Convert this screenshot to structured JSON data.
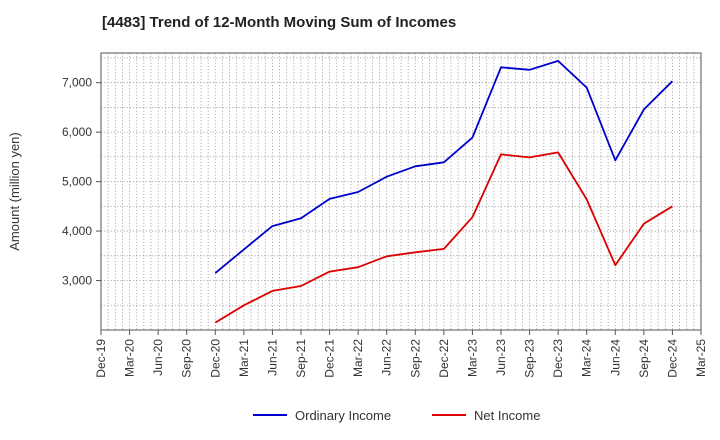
{
  "chart_data": {
    "type": "line",
    "title": "[4483]  Trend of 12-Month Moving Sum of Incomes",
    "xlabel": "",
    "ylabel": "Amount (million yen)",
    "ylim": [
      2000,
      7600
    ],
    "yticks": [
      3000,
      4000,
      5000,
      6000,
      7000
    ],
    "ytick_labels": [
      "3,000",
      "4,000",
      "5,000",
      "6,000",
      "7,000"
    ],
    "categories": [
      "Dec-19",
      "Mar-20",
      "Jun-20",
      "Sep-20",
      "Dec-20",
      "Mar-21",
      "Jun-21",
      "Sep-21",
      "Dec-21",
      "Mar-22",
      "Jun-22",
      "Sep-22",
      "Dec-22",
      "Mar-23",
      "Jun-23",
      "Sep-23",
      "Dec-23",
      "Mar-24",
      "Jun-24",
      "Sep-24",
      "Dec-24",
      "Mar-25"
    ],
    "grid": true,
    "legend_position": "bottom-center",
    "series": [
      {
        "name": "Ordinary Income",
        "color": "#0000cc",
        "values": [
          null,
          null,
          null,
          null,
          3150,
          3630,
          4100,
          4260,
          4650,
          4790,
          5100,
          5310,
          5390,
          5890,
          7310,
          7260,
          7440,
          6900,
          5430,
          6460,
          7030,
          null
        ]
      },
      {
        "name": "Net Income",
        "color": "#dd0000",
        "values": [
          null,
          null,
          null,
          null,
          2150,
          2500,
          2790,
          2890,
          3180,
          3270,
          3490,
          3570,
          3640,
          4280,
          5550,
          5490,
          5590,
          4640,
          3310,
          4150,
          4500,
          null
        ]
      }
    ]
  }
}
